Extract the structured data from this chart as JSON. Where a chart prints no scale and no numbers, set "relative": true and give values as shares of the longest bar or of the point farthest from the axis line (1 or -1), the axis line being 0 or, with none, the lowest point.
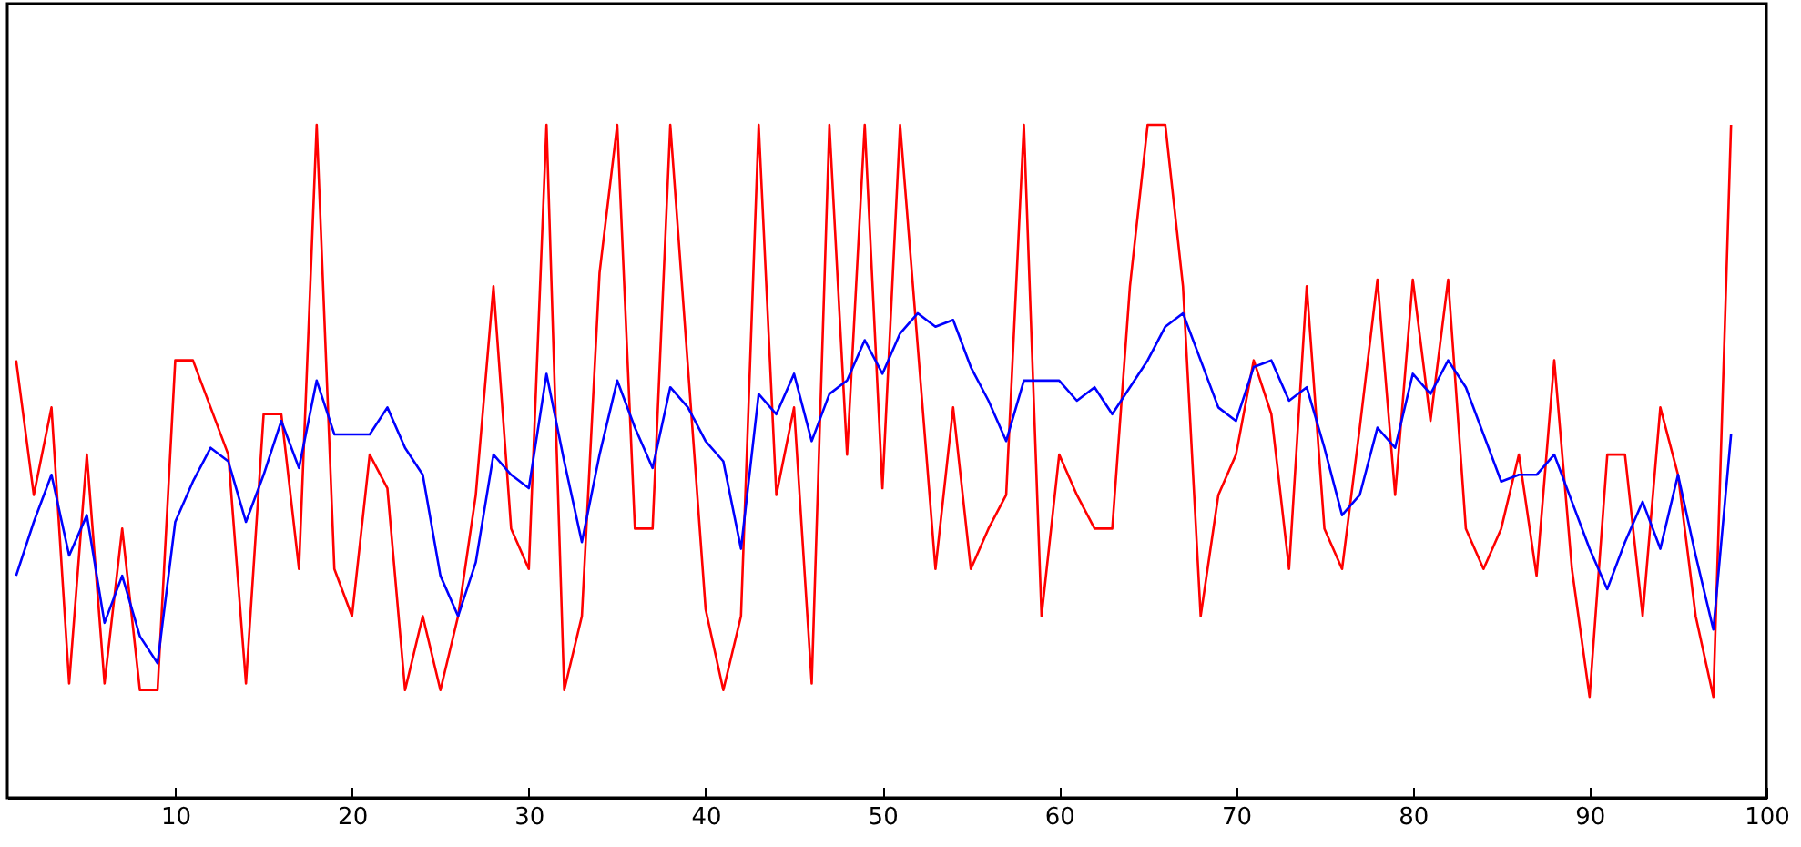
{
  "chart_data": {
    "type": "line",
    "relative": true,
    "x": [
      1,
      2,
      3,
      4,
      5,
      6,
      7,
      8,
      9,
      10,
      11,
      12,
      13,
      14,
      15,
      16,
      17,
      18,
      19,
      20,
      21,
      22,
      23,
      24,
      25,
      26,
      27,
      28,
      29,
      30,
      31,
      32,
      33,
      34,
      35,
      36,
      37,
      38,
      39,
      40,
      41,
      42,
      43,
      44,
      45,
      46,
      47,
      48,
      49,
      50,
      51,
      52,
      53,
      54,
      55,
      56,
      57,
      58,
      59,
      60,
      61,
      62,
      63,
      64,
      65,
      66,
      67,
      68,
      69,
      70,
      71,
      72,
      73,
      74,
      75,
      76,
      77,
      78,
      79,
      80,
      81,
      82,
      83,
      84,
      85,
      86,
      87,
      88,
      89,
      90,
      91,
      92,
      93,
      94,
      95,
      96,
      97,
      98
    ],
    "xlim": [
      0.5,
      100
    ],
    "xticks": [
      10,
      20,
      30,
      40,
      50,
      60,
      70,
      80,
      90,
      100
    ],
    "series": [
      {
        "color": "#ff0000",
        "values": [
          0.65,
          0.45,
          0.58,
          0.17,
          0.51,
          0.17,
          0.4,
          0.16,
          0.16,
          0.65,
          0.65,
          0.58,
          0.51,
          0.17,
          0.57,
          0.57,
          0.34,
          1.0,
          0.34,
          0.27,
          0.51,
          0.46,
          0.16,
          0.27,
          0.16,
          0.27,
          0.45,
          0.76,
          0.4,
          0.34,
          1.0,
          0.16,
          0.27,
          0.78,
          1.0,
          0.4,
          0.4,
          1.0,
          0.64,
          0.28,
          0.16,
          0.27,
          1.0,
          0.45,
          0.58,
          0.17,
          1.0,
          0.51,
          1.0,
          0.46,
          1.0,
          0.67,
          0.34,
          0.58,
          0.34,
          0.4,
          0.45,
          1.0,
          0.27,
          0.51,
          0.45,
          0.4,
          0.4,
          0.76,
          1.0,
          1.0,
          0.76,
          0.27,
          0.45,
          0.51,
          0.65,
          0.57,
          0.34,
          0.76,
          0.4,
          0.34,
          0.55,
          0.77,
          0.45,
          0.77,
          0.56,
          0.77,
          0.4,
          0.34,
          0.4,
          0.51,
          0.33,
          0.65,
          0.34,
          0.15,
          0.51,
          0.51,
          0.27,
          0.58,
          0.48,
          0.27,
          0.15,
          1.0
        ]
      },
      {
        "color": "#0000ff",
        "values": [
          0.33,
          0.41,
          0.48,
          0.36,
          0.42,
          0.26,
          0.33,
          0.24,
          0.2,
          0.41,
          0.47,
          0.52,
          0.5,
          0.41,
          0.48,
          0.56,
          0.49,
          0.62,
          0.54,
          0.54,
          0.54,
          0.58,
          0.52,
          0.48,
          0.33,
          0.27,
          0.35,
          0.51,
          0.48,
          0.46,
          0.63,
          0.5,
          0.38,
          0.51,
          0.62,
          0.55,
          0.49,
          0.61,
          0.58,
          0.53,
          0.5,
          0.37,
          0.6,
          0.57,
          0.63,
          0.53,
          0.6,
          0.62,
          0.68,
          0.63,
          0.69,
          0.72,
          0.7,
          0.71,
          0.64,
          0.59,
          0.53,
          0.62,
          0.62,
          0.62,
          0.59,
          0.61,
          0.57,
          0.61,
          0.65,
          0.7,
          0.72,
          0.65,
          0.58,
          0.56,
          0.64,
          0.65,
          0.59,
          0.61,
          0.52,
          0.42,
          0.45,
          0.55,
          0.52,
          0.63,
          0.6,
          0.65,
          0.61,
          0.54,
          0.47,
          0.48,
          0.48,
          0.51,
          0.44,
          0.37,
          0.31,
          0.38,
          0.44,
          0.37,
          0.48,
          0.36,
          0.25,
          0.54
        ]
      }
    ]
  }
}
